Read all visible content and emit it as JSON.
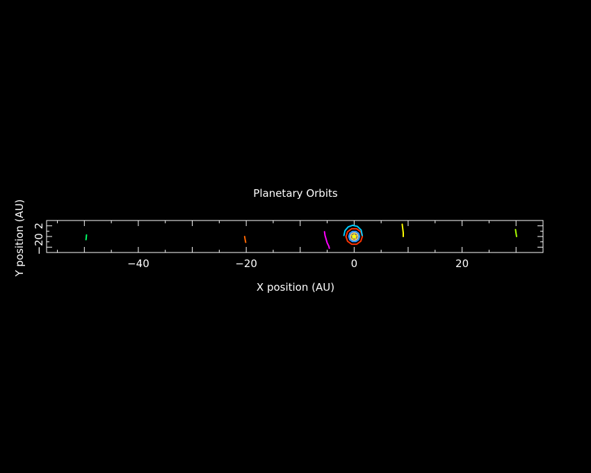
{
  "chart_data": {
    "type": "line",
    "title": "Planetary Orbits",
    "xlabel": "X position (AU)",
    "ylabel": "Y position (AU)",
    "xlim": [
      -57,
      35
    ],
    "ylim": [
      -3,
      3
    ],
    "x_ticks": [
      {
        "value": -40,
        "label": "−40"
      },
      {
        "value": -20,
        "label": "−20"
      },
      {
        "value": 0,
        "label": "0"
      },
      {
        "value": 20,
        "label": "20"
      }
    ],
    "y_ticks": [
      {
        "value": -2,
        "label": "−2"
      },
      {
        "value": 0,
        "label": "0"
      },
      {
        "value": 2,
        "label": "2"
      }
    ],
    "background": "#000000",
    "axis_color": "#ffffff",
    "sun": {
      "x": 0,
      "y": 0,
      "color": "#ffff00",
      "ring_color": "#3399ff"
    },
    "series": [
      {
        "color": "#999999",
        "points": [
          [
            0.39,
            0.0
          ],
          [
            0.32,
            0.22
          ],
          [
            0.12,
            0.37
          ],
          [
            -0.12,
            0.37
          ],
          [
            -0.32,
            0.22
          ],
          [
            -0.39,
            0.0
          ],
          [
            -0.32,
            -0.22
          ],
          [
            -0.12,
            -0.37
          ],
          [
            0.12,
            -0.37
          ],
          [
            0.32,
            -0.22
          ],
          [
            0.39,
            0.0
          ]
        ]
      },
      {
        "color": "#ffcc66",
        "points": [
          [
            0.72,
            0.0
          ],
          [
            0.58,
            0.42
          ],
          [
            0.22,
            0.68
          ],
          [
            -0.22,
            0.68
          ],
          [
            -0.58,
            0.42
          ],
          [
            -0.72,
            0.0
          ],
          [
            -0.58,
            -0.42
          ],
          [
            -0.22,
            -0.68
          ],
          [
            0.22,
            -0.68
          ],
          [
            0.58,
            -0.42
          ],
          [
            0.72,
            0.0
          ]
        ]
      },
      {
        "color": "#3399ff",
        "points": [
          [
            1.0,
            0.0
          ],
          [
            0.81,
            0.59
          ],
          [
            0.31,
            0.95
          ],
          [
            -0.31,
            0.95
          ],
          [
            -0.81,
            0.59
          ],
          [
            -1.0,
            0.0
          ],
          [
            -0.81,
            -0.59
          ],
          [
            -0.31,
            -0.95
          ],
          [
            0.31,
            -0.95
          ],
          [
            0.81,
            -0.59
          ],
          [
            1.0,
            0.0
          ]
        ]
      },
      {
        "color": "#ff3300",
        "points": [
          [
            1.52,
            0.0
          ],
          [
            1.23,
            0.89
          ],
          [
            0.47,
            1.45
          ],
          [
            -0.47,
            1.45
          ],
          [
            -1.23,
            0.89
          ],
          [
            -1.52,
            0.0
          ],
          [
            -1.23,
            -0.89
          ],
          [
            -0.47,
            -1.45
          ],
          [
            0.47,
            -1.45
          ],
          [
            1.23,
            -0.89
          ],
          [
            1.52,
            0.0
          ]
        ]
      },
      {
        "color": "#00ccff",
        "points": [
          [
            1.5,
            0.2
          ],
          [
            1.3,
            1.2
          ],
          [
            0.6,
            1.9
          ],
          [
            -0.3,
            2.1
          ],
          [
            -1.1,
            1.8
          ],
          [
            -1.7,
            1.1
          ],
          [
            -1.9,
            0.2
          ]
        ]
      },
      {
        "color": "#ff00ff",
        "points": [
          [
            -5.5,
            0.9
          ],
          [
            -5.4,
            0.2
          ],
          [
            -5.2,
            -0.5
          ],
          [
            -5.0,
            -1.2
          ],
          [
            -4.7,
            -1.8
          ],
          [
            -4.6,
            -2.2
          ]
        ]
      },
      {
        "color": "#ffff00",
        "points": [
          [
            8.9,
            2.3
          ],
          [
            9.0,
            1.5
          ],
          [
            9.1,
            0.7
          ],
          [
            9.1,
            0.0
          ]
        ]
      },
      {
        "color": "#aaff00",
        "points": [
          [
            29.9,
            1.3
          ],
          [
            30.0,
            0.6
          ],
          [
            30.1,
            0.0
          ]
        ]
      },
      {
        "color": "#ff6600",
        "points": [
          [
            -20.3,
            0.0
          ],
          [
            -20.2,
            -0.6
          ],
          [
            -20.1,
            -1.1
          ]
        ]
      },
      {
        "color": "#00ff66",
        "points": [
          [
            -49.6,
            0.3
          ],
          [
            -49.65,
            -0.2
          ],
          [
            -49.7,
            -0.6
          ]
        ]
      }
    ]
  }
}
